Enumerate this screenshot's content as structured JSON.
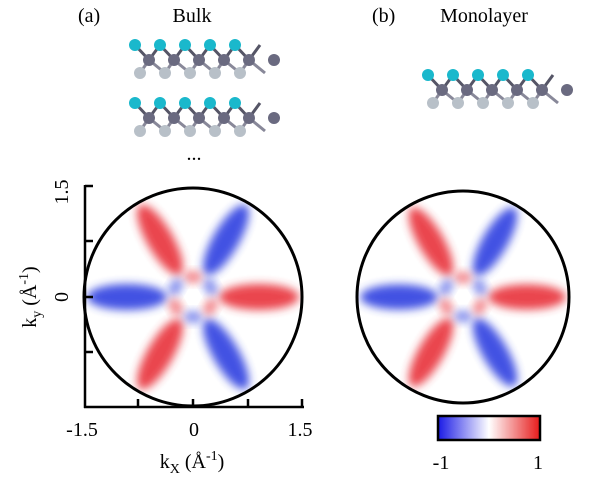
{
  "panel_a": {
    "label": "(a)",
    "title": "Bulk",
    "ellipsis": "..."
  },
  "panel_b": {
    "label": "(b)",
    "title": "Monolayer"
  },
  "axes": {
    "xlabel": {
      "k": "k",
      "sub": "X",
      "unit": "(Å",
      "sup": "-1",
      "close": ")"
    },
    "ylabel": {
      "k": "k",
      "sub": "y",
      "unit": "(Å",
      "sup": "-1",
      "close": ")"
    },
    "xticks": [
      -1.5,
      0,
      1.5
    ],
    "yticks": [
      0,
      1.5
    ]
  },
  "colorbar": {
    "ticks": [
      -1,
      1
    ]
  }
}
